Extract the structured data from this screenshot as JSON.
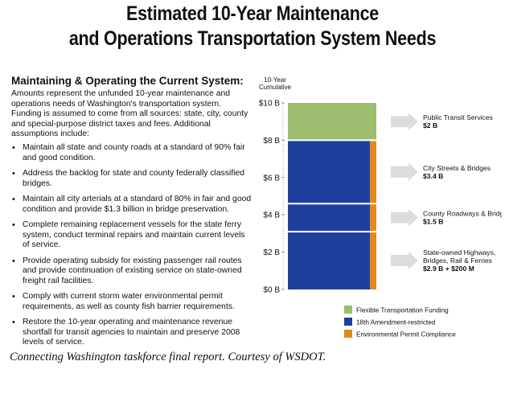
{
  "title": {
    "line1": "Estimated 10-Year Maintenance",
    "line2": "and Operations Transportation System Needs"
  },
  "left": {
    "heading": "Maintaining & Operating the Current System:",
    "intro": "Amounts represent the unfunded 10-year maintenance and operations needs of Washington's transportation system. Funding is assumed to come from all sources: state, city, county and special-purpose district taxes and fees. Additional assumptions include:",
    "bullets": [
      "Maintain all state and county roads at a standard of 90% fair and good condition.",
      "Address the backlog for state and county federally classified bridges.",
      "Maintain all city arterials at a standard of 80% in fair and good condition and provide $1.3 billion in bridge preservation.",
      "Complete remaining replacement vessels for the state ferry system, conduct terminal repairs and maintain current levels of service.",
      "Provide operating subsidy for existing passenger rail routes and provide continuation of existing service on state-owned freight rail facilities.",
      "Comply with current storm water environmental permit requirements, as well as county fish barrier requirements.",
      "Restore the 10-year operating and maintenance revenue shortfall for transit agencies to maintain and preserve 2008 levels of service."
    ]
  },
  "caption": "Connecting Washington taskforce final report. Courtesy of WSDOT.",
  "colors": {
    "flexible": "#9ebd6e",
    "amendment18": "#1f3f9e",
    "environmental": "#e08a22",
    "arrow": "#dcdcdc"
  },
  "chart_data": {
    "type": "bar",
    "stacked": true,
    "ylabel_lines": [
      "10-Year",
      "Cumulative"
    ],
    "ylim": [
      0,
      10
    ],
    "yticks": [
      {
        "value": 0,
        "label": "$0 B"
      },
      {
        "value": 2,
        "label": "$2 B"
      },
      {
        "value": 4,
        "label": "$4 B"
      },
      {
        "value": 6,
        "label": "$6 B"
      },
      {
        "value": 8,
        "label": "$8 B"
      },
      {
        "value": 10,
        "label": "$10 B"
      }
    ],
    "segments": [
      {
        "name": "State-owned Highways, Bridges, Rail & Ferries",
        "label_lines": [
          "State-owned Highways,",
          "Bridges, Rail & Ferries"
        ],
        "value_label": "$2.9 B + $200 M",
        "start": 0,
        "amendment18": 2.9,
        "environmental": 0.2,
        "flexible": 0
      },
      {
        "name": "County Roadways & Bridges",
        "label_lines": [
          "County Roadways & Bridges"
        ],
        "value_label": "$1.5 B",
        "start": 3.1,
        "amendment18": 1.5,
        "environmental": 0,
        "flexible": 0
      },
      {
        "name": "City Streets & Bridges",
        "label_lines": [
          "City Streets & Bridges"
        ],
        "value_label": "$3.4 B",
        "start": 4.6,
        "amendment18": 3.4,
        "environmental": 0,
        "flexible": 0
      },
      {
        "name": "Public Transit Services",
        "label_lines": [
          "Public Transit Services"
        ],
        "value_label": "$2 B",
        "start": 8.0,
        "amendment18": 0,
        "environmental": 0,
        "flexible": 2.0
      }
    ],
    "legend": [
      {
        "key": "flexible",
        "label": "Flexible Transportation Funding"
      },
      {
        "key": "amendment18",
        "label": "18th Amendment-restricted"
      },
      {
        "key": "environmental",
        "label": "Environmental Permit Compliance"
      }
    ],
    "legend_position": "bottom"
  }
}
